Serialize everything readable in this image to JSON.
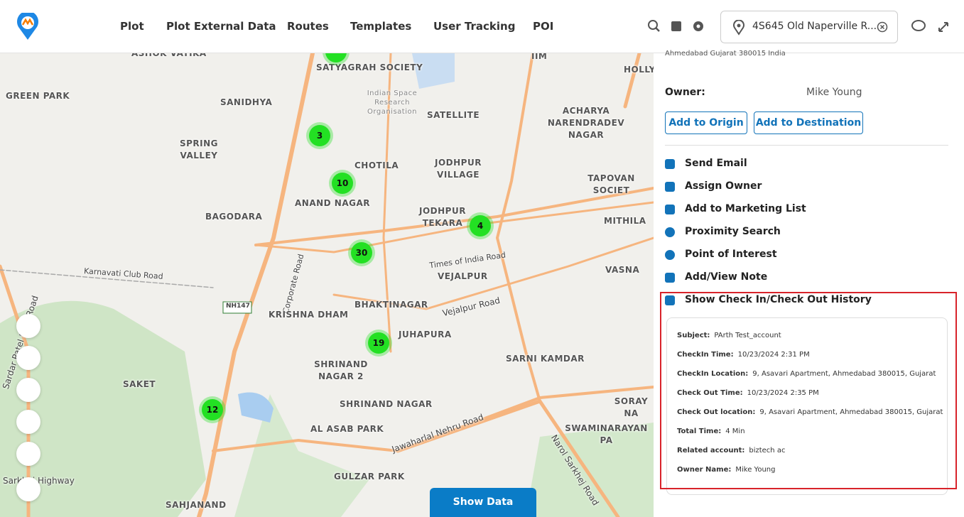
{
  "nav": {
    "items": [
      "Plot",
      "Plot External Data",
      "Routes",
      "Templates",
      "User Tracking",
      "POI"
    ],
    "search_address": "4S645 Old Naperville R..."
  },
  "map": {
    "labels": [
      "ASHOK VATIKA",
      "SATYAGRAH SOCIETY",
      "IIM",
      "HOLLY",
      "GREEN PARK",
      "SANIDHYA",
      "Indian Space Research Organisation",
      "SATELLITE",
      "ACHARYA NARENDRADEV NAGAR",
      "SPRING VALLEY",
      "CHOTILA",
      "JODHPUR VILLAGE",
      "TAPOVAN SOCIET",
      "BAGODARA",
      "ANAND NAGAR",
      "JODHPUR TEKARA",
      "MITHILA",
      "Times of India Road",
      "VEJALPUR",
      "VASNA",
      "Karnavati Club Road",
      "Corporate Road",
      "Sardar Patel Ring Road",
      "KRISHNA DHAM",
      "BHAKTINAGAR",
      "Vejalpur Road",
      "JUHAPURA",
      "SARNI KAMDAR",
      "SHRINAND NAGAR 2",
      "SAKET",
      "SORAY NA",
      "SHRINAND NAGAR",
      "AL ASAB PARK",
      "Jawaharlal Nehru Road",
      "SWAMINARAYAN PA",
      "Narol Sarkhej Road",
      "GULZAR PARK",
      "Sarkhej Highway",
      "SAHJANAND"
    ],
    "shield": "NH147",
    "clusters": [
      3,
      10,
      4,
      30,
      19,
      12
    ],
    "show_data": "Show Data"
  },
  "panel": {
    "address_fragment": "Ahmedabad Gujarat 380015 India",
    "owner_label": "Owner:",
    "owner_value": "Mike Young",
    "buttons": [
      "Add to Origin",
      "Add to Destination"
    ],
    "actions": [
      "Send Email",
      "Assign Owner",
      "Add to Marketing List",
      "Proximity Search",
      "Point of Interest",
      "Add/View Note",
      "Show Check In/Check Out History"
    ],
    "history": [
      {
        "label": "Subject:",
        "value": "PArth Test_account"
      },
      {
        "label": "CheckIn Time:",
        "value": "10/23/2024 2:31 PM"
      },
      {
        "label": "CheckIn Location:",
        "value": "9, Asavari Apartment, Ahmedabad 380015, Gujarat"
      },
      {
        "label": "Check Out Time:",
        "value": "10/23/2024 2:35 PM"
      },
      {
        "label": "Check Out location:",
        "value": "9, Asavari Apartment, Ahmedabad 380015, Gujarat"
      },
      {
        "label": "Total Time:",
        "value": "4 Min"
      },
      {
        "label": "Related account:",
        "value": "biztech ac"
      },
      {
        "label": "Owner Name:",
        "value": "Mike Young"
      }
    ]
  }
}
